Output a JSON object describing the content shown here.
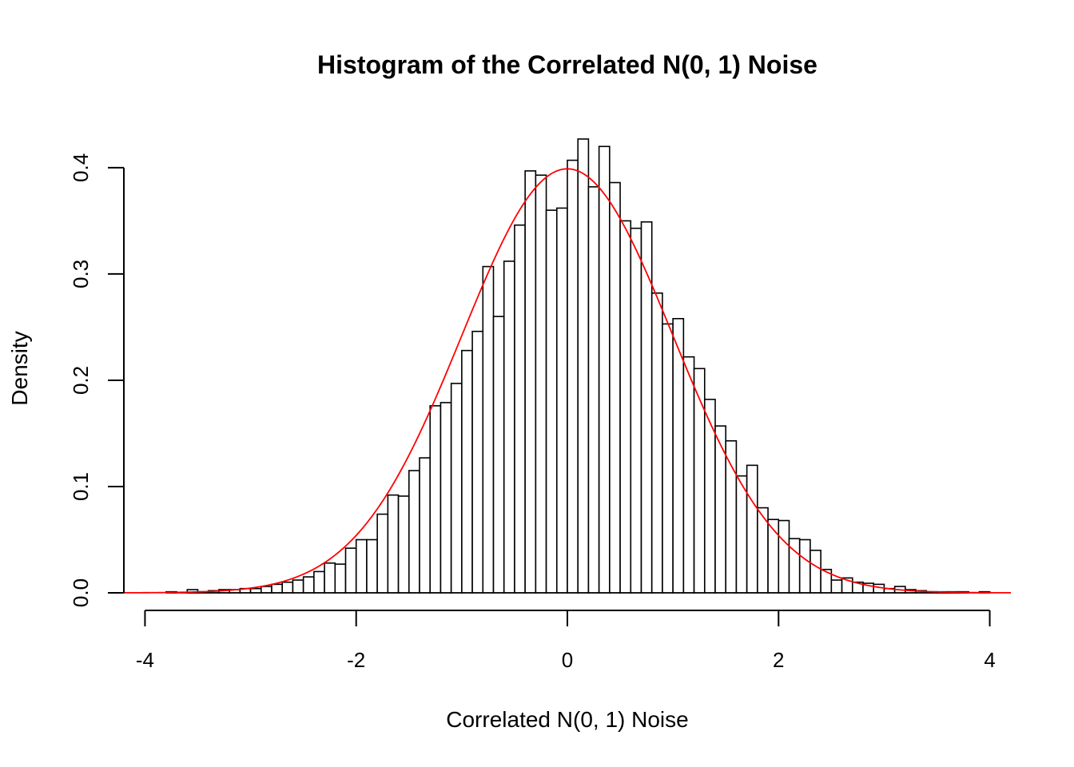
{
  "chart_data": {
    "type": "bar",
    "subtype": "histogram-with-density-curve",
    "title": "Histogram of the Correlated N(0, 1) Noise",
    "xlabel": "Correlated N(0, 1) Noise",
    "ylabel": "Density",
    "xlim": [
      -4.2,
      4.2
    ],
    "ylim": [
      0,
      0.43
    ],
    "x_ticks": [
      "-4",
      "-2",
      "0",
      "2",
      "4"
    ],
    "x_tick_values": [
      -4,
      -2,
      0,
      2,
      4
    ],
    "y_ticks": [
      "0.0",
      "0.1",
      "0.2",
      "0.3",
      "0.4"
    ],
    "y_tick_values": [
      0.0,
      0.1,
      0.2,
      0.3,
      0.4
    ],
    "bin_width": 0.1,
    "bins_start": -3.8,
    "values": [
      0.001,
      0.0,
      0.003,
      0.001,
      0.002,
      0.003,
      0.003,
      0.004,
      0.004,
      0.006,
      0.008,
      0.01,
      0.012,
      0.015,
      0.02,
      0.028,
      0.027,
      0.042,
      0.05,
      0.05,
      0.074,
      0.092,
      0.091,
      0.115,
      0.127,
      0.176,
      0.179,
      0.197,
      0.228,
      0.246,
      0.307,
      0.26,
      0.312,
      0.346,
      0.397,
      0.393,
      0.36,
      0.362,
      0.407,
      0.427,
      0.382,
      0.42,
      0.386,
      0.35,
      0.343,
      0.349,
      0.282,
      0.253,
      0.258,
      0.222,
      0.211,
      0.182,
      0.157,
      0.143,
      0.11,
      0.12,
      0.08,
      0.069,
      0.068,
      0.051,
      0.05,
      0.04,
      0.022,
      0.012,
      0.014,
      0.01,
      0.009,
      0.008,
      0.004,
      0.006,
      0.003,
      0.002,
      0.001,
      0.001,
      0.001,
      0.001,
      0.0,
      0.001
    ],
    "curve": {
      "label": "N(0, 1) density",
      "mean": 0,
      "sd": 1,
      "x_range": [
        -4.2,
        4.2
      ],
      "color": "#ff0000"
    },
    "bar_fill": "#ffffff",
    "bar_stroke": "#000000",
    "grid": false,
    "legend": "none"
  }
}
